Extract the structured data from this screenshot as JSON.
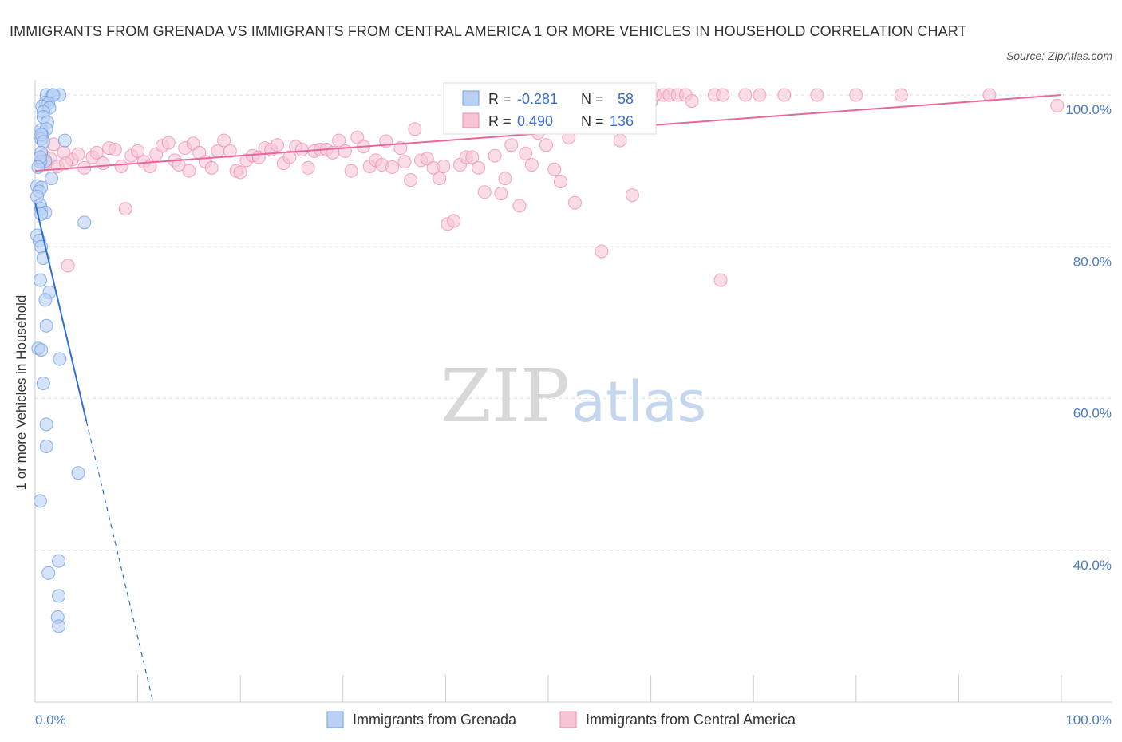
{
  "title": "IMMIGRANTS FROM GRENADA VS IMMIGRANTS FROM CENTRAL AMERICA 1 OR MORE VEHICLES IN HOUSEHOLD CORRELATION CHART",
  "source": "Source: ZipAtlas.com",
  "watermark": {
    "zip": "ZIP",
    "atlas": "atlas"
  },
  "stats": {
    "r_label": "R =",
    "n_label": "N =",
    "rows": [
      {
        "r": "-0.281",
        "n": "58",
        "color": "#6f9fe4"
      },
      {
        "r": "0.490",
        "n": "136",
        "color": "#f08db0"
      }
    ]
  },
  "chart_data": {
    "type": "scatter",
    "title": "IMMIGRANTS FROM GRENADA VS IMMIGRANTS FROM CENTRAL AMERICA 1 OR MORE VEHICLES IN HOUSEHOLD CORRELATION CHART",
    "xlabel": "",
    "ylabel": "1 or more Vehicles in Household",
    "xlim": [
      0,
      100
    ],
    "ylim": [
      20,
      102
    ],
    "x_tick_labels": [
      "0.0%",
      "100.0%"
    ],
    "y_ticks": [
      100,
      80,
      60,
      40
    ],
    "y_tick_labels": [
      "100.0%",
      "80.0%",
      "60.0%",
      "40.0%"
    ],
    "grid": true,
    "legend_position": "bottom-center",
    "series": [
      {
        "name": "Immigrants from Grenada",
        "color": "#6f9fe4",
        "fill": "#b9d0f3",
        "r": -0.281,
        "n": 58,
        "trend": {
          "x0": 0.0,
          "y0": 85.8,
          "x1": 5.0,
          "y1": 57.0,
          "dash_to_x": 11.5,
          "dash_to_y": 20.0
        },
        "points": [
          [
            1.1,
            100
          ],
          [
            2.4,
            100
          ],
          [
            1.7,
            100
          ],
          [
            1.8,
            100
          ],
          [
            1.0,
            99
          ],
          [
            1.3,
            98.9
          ],
          [
            0.7,
            98.5
          ],
          [
            1.4,
            98.3
          ],
          [
            0.8,
            97.8
          ],
          [
            0.8,
            97.1
          ],
          [
            1.2,
            96.4
          ],
          [
            0.6,
            95.4
          ],
          [
            1.1,
            95.5
          ],
          [
            0.7,
            94.7
          ],
          [
            2.9,
            94.0
          ],
          [
            0.6,
            94.2
          ],
          [
            0.6,
            94.8
          ],
          [
            0.8,
            93.8
          ],
          [
            0.6,
            92.4
          ],
          [
            1.0,
            91.3
          ],
          [
            0.5,
            91.2
          ],
          [
            0.5,
            91.8
          ],
          [
            0.3,
            90.5
          ],
          [
            1.6,
            89.0
          ],
          [
            0.2,
            88.0
          ],
          [
            0.6,
            87.8
          ],
          [
            0.4,
            87.3
          ],
          [
            0.2,
            86.6
          ],
          [
            0.5,
            85.5
          ],
          [
            0.6,
            85.0
          ],
          [
            1.0,
            84.5
          ],
          [
            0.6,
            84.3
          ],
          [
            4.8,
            83.2
          ],
          [
            0.2,
            81.5
          ],
          [
            0.4,
            80.8
          ],
          [
            0.6,
            80.0
          ],
          [
            0.8,
            78.5
          ],
          [
            0.5,
            75.6
          ],
          [
            1.4,
            74.0
          ],
          [
            1.0,
            73.0
          ],
          [
            1.1,
            69.6
          ],
          [
            0.3,
            66.6
          ],
          [
            0.6,
            66.4
          ],
          [
            2.4,
            65.2
          ],
          [
            0.8,
            62.0
          ],
          [
            1.1,
            56.6
          ],
          [
            1.1,
            53.7
          ],
          [
            4.2,
            50.2
          ],
          [
            0.5,
            46.5
          ],
          [
            2.3,
            38.6
          ],
          [
            1.3,
            37.0
          ],
          [
            2.3,
            34.0
          ],
          [
            2.2,
            31.2
          ],
          [
            2.3,
            30.0
          ]
        ]
      },
      {
        "name": "Immigrants from Central America",
        "color": "#f08db0",
        "fill": "#f7c4d6",
        "r": 0.49,
        "n": 136,
        "trend": {
          "x0": 0.0,
          "y0": 90.0,
          "x1": 100.0,
          "y1": 100.0
        },
        "points": [
          [
            0.8,
            92.0
          ],
          [
            1.5,
            91.6
          ],
          [
            0.6,
            91.2
          ],
          [
            1.0,
            91.0
          ],
          [
            2.2,
            90.6
          ],
          [
            1.8,
            93.5
          ],
          [
            3.2,
            77.5
          ],
          [
            3.6,
            91.5
          ],
          [
            4.2,
            92.2
          ],
          [
            4.8,
            90.4
          ],
          [
            5.6,
            91.8
          ],
          [
            6.0,
            92.4
          ],
          [
            6.6,
            91.0
          ],
          [
            7.2,
            93.0
          ],
          [
            7.8,
            92.8
          ],
          [
            8.4,
            90.6
          ],
          [
            8.8,
            85.0
          ],
          [
            9.4,
            92.0
          ],
          [
            10.0,
            92.6
          ],
          [
            10.6,
            91.2
          ],
          [
            11.2,
            90.6
          ],
          [
            11.8,
            92.2
          ],
          [
            12.4,
            93.3
          ],
          [
            13.0,
            93.7
          ],
          [
            13.6,
            91.4
          ],
          [
            14.0,
            90.8
          ],
          [
            14.6,
            93.0
          ],
          [
            15.0,
            90.0
          ],
          [
            15.4,
            93.6
          ],
          [
            16.0,
            92.4
          ],
          [
            16.6,
            91.2
          ],
          [
            17.2,
            90.4
          ],
          [
            17.8,
            92.6
          ],
          [
            18.4,
            94.0
          ],
          [
            19.0,
            92.6
          ],
          [
            19.6,
            90.0
          ],
          [
            20.0,
            89.8
          ],
          [
            20.6,
            91.4
          ],
          [
            21.2,
            92.0
          ],
          [
            21.8,
            91.8
          ],
          [
            22.4,
            93.0
          ],
          [
            23.0,
            92.8
          ],
          [
            23.6,
            93.4
          ],
          [
            24.2,
            91.0
          ],
          [
            24.8,
            91.8
          ],
          [
            25.4,
            93.2
          ],
          [
            26.0,
            92.8
          ],
          [
            26.6,
            90.4
          ],
          [
            27.2,
            92.6
          ],
          [
            27.8,
            92.8
          ],
          [
            28.4,
            92.8
          ],
          [
            29.0,
            92.4
          ],
          [
            29.6,
            94.0
          ],
          [
            30.2,
            92.6
          ],
          [
            30.8,
            90.0
          ],
          [
            31.4,
            94.4
          ],
          [
            32.0,
            93.2
          ],
          [
            32.6,
            90.6
          ],
          [
            33.2,
            91.4
          ],
          [
            33.8,
            90.8
          ],
          [
            34.2,
            93.9
          ],
          [
            34.8,
            90.5
          ],
          [
            35.6,
            93.0
          ],
          [
            36.0,
            91.2
          ],
          [
            36.6,
            88.8
          ],
          [
            37.0,
            95.5
          ],
          [
            37.6,
            91.4
          ],
          [
            38.2,
            91.6
          ],
          [
            38.8,
            90.4
          ],
          [
            39.4,
            89.0
          ],
          [
            39.8,
            90.6
          ],
          [
            40.2,
            83.0
          ],
          [
            40.8,
            83.4
          ],
          [
            41.4,
            90.8
          ],
          [
            42.0,
            91.8
          ],
          [
            42.6,
            91.8
          ],
          [
            43.2,
            90.4
          ],
          [
            43.8,
            87.2
          ],
          [
            44.2,
            97.0
          ],
          [
            44.8,
            92.0
          ],
          [
            45.4,
            87.0
          ],
          [
            45.8,
            89.0
          ],
          [
            46.4,
            93.4
          ],
          [
            47.2,
            85.4
          ],
          [
            47.8,
            92.3
          ],
          [
            48.4,
            90.8
          ],
          [
            49.0,
            95.0
          ],
          [
            49.8,
            93.4
          ],
          [
            50.6,
            90.2
          ],
          [
            51.2,
            88.6
          ],
          [
            52.0,
            94.4
          ],
          [
            52.6,
            85.8
          ],
          [
            53.0,
            100.0
          ],
          [
            54.2,
            100.0
          ],
          [
            55.2,
            79.4
          ],
          [
            56.0,
            100.0
          ],
          [
            57.0,
            94.0
          ],
          [
            58.2,
            86.8
          ],
          [
            59.2,
            100.0
          ],
          [
            59.6,
            96.0
          ],
          [
            60.4,
            100.0
          ],
          [
            61.2,
            100.0
          ],
          [
            61.8,
            100.0
          ],
          [
            62.6,
            100.0
          ],
          [
            63.4,
            100.0
          ],
          [
            66.2,
            100.0
          ],
          [
            67.0,
            100.0
          ],
          [
            66.8,
            75.6
          ],
          [
            69.2,
            100.0
          ],
          [
            70.6,
            100.0
          ],
          [
            73.0,
            100.0
          ],
          [
            76.2,
            100.0
          ],
          [
            80.0,
            100.0
          ],
          [
            84.4,
            100.0
          ],
          [
            93.0,
            100.0
          ],
          [
            99.6,
            98.6
          ],
          [
            46.0,
            98.0
          ],
          [
            49.2,
            98.4
          ],
          [
            60.0,
            99.0
          ],
          [
            64.0,
            99.2
          ],
          [
            2.8,
            92.4
          ],
          [
            3.0,
            91.0
          ]
        ]
      }
    ]
  },
  "legend": {
    "items": [
      {
        "label": "Immigrants from Grenada"
      },
      {
        "label": "Immigrants from Central America"
      }
    ]
  }
}
